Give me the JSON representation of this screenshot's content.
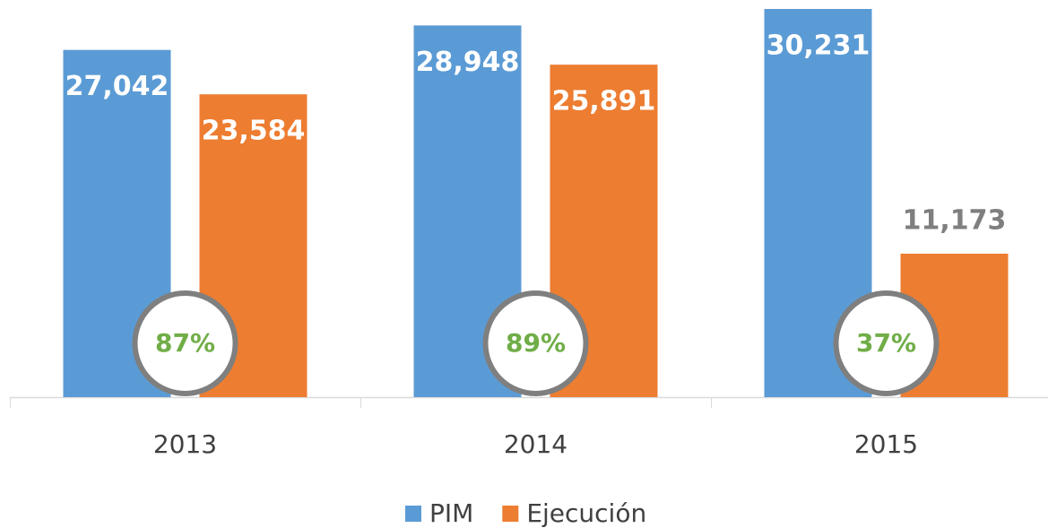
{
  "chart_data": {
    "type": "bar",
    "categories": [
      "2013",
      "2014",
      "2015"
    ],
    "series": [
      {
        "name": "PIM",
        "color": "#5b9bd5",
        "values": [
          27042,
          28948,
          30231
        ],
        "value_labels": [
          "27,042",
          "28,948",
          "30,231"
        ]
      },
      {
        "name": "Ejecución",
        "color": "#ed7d31",
        "values": [
          23584,
          25891,
          11173
        ],
        "value_labels": [
          "23,584",
          "25,891",
          "11,173"
        ]
      }
    ],
    "ratios": [
      87,
      89,
      37
    ],
    "ratio_labels": [
      "87%",
      "89%",
      "37%"
    ],
    "ratio_color": "#70ad47"
  }
}
